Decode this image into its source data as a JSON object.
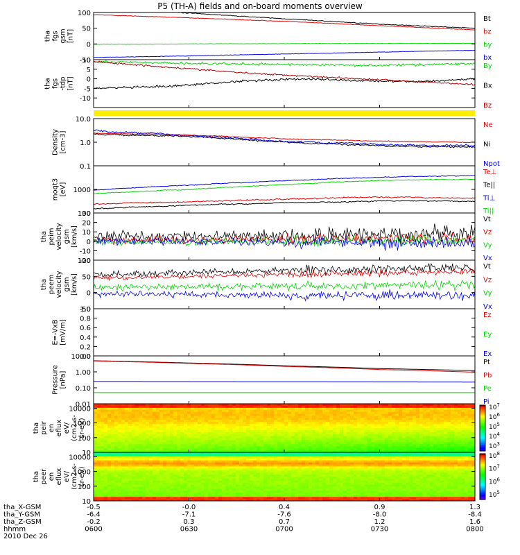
{
  "title": "P5 (TH-A) fields and on-board moments overview",
  "colors": {
    "black": "#000000",
    "red": "#e00000",
    "green": "#00d800",
    "blue": "#0000e0",
    "dark_red": "#b00000",
    "yellow": "#ffee00"
  },
  "footer": {
    "rows": [
      {
        "label": "tha_X-GSM",
        "values": [
          "-0.5",
          "-0.0",
          "0.4",
          "0.9",
          "1.3"
        ]
      },
      {
        "label": "tha_Y-GSM",
        "values": [
          "-6.4",
          "-7.1",
          "-7.6",
          "-8.0",
          "-8.4"
        ]
      },
      {
        "label": "tha_Z-GSM",
        "values": [
          "-0.2",
          "0.3",
          "0.7",
          "1.2",
          "1.6"
        ]
      },
      {
        "label": "hhmm",
        "values": [
          "0600",
          "0630",
          "0700",
          "0730",
          "0800"
        ]
      }
    ],
    "date": "2010 Dec 26"
  },
  "chart_data": [
    {
      "id": "fgs_gsm",
      "type": "line",
      "ylabel_lines": [
        "tha",
        "fgs",
        "gsm",
        "[nT]"
      ],
      "ylim": [
        -50,
        100
      ],
      "yticks": [
        "100",
        "50",
        "0",
        "-50"
      ],
      "x_range": [
        "0600",
        "0800"
      ],
      "series": [
        {
          "name": "Bt",
          "color": "#000000",
          "x": [
            0,
            0.25,
            0.5,
            0.75,
            1
          ],
          "y": [
            118,
            98,
            80,
            63,
            50
          ],
          "noise": 1
        },
        {
          "name": "bz",
          "color": "#e00000",
          "x": [
            0,
            0.25,
            0.5,
            0.75,
            1
          ],
          "y": [
            93,
            83,
            72,
            58,
            45
          ],
          "noise": 0.8
        },
        {
          "name": "by",
          "color": "#00d800",
          "x": [
            0,
            0.5,
            1
          ],
          "y": [
            -1,
            1,
            2
          ],
          "noise": 0.6
        },
        {
          "name": "bx",
          "color": "#0000e0",
          "x": [
            0,
            0.25,
            0.5,
            0.75,
            1
          ],
          "y": [
            -43,
            -38,
            -32,
            -26,
            -20
          ],
          "noise": 0.6
        }
      ]
    },
    {
      "id": "fgs_tdp",
      "type": "line",
      "ylabel_lines": [
        "tha",
        "fgs",
        "-tdp",
        "[nT]"
      ],
      "ylim": [
        -15,
        10
      ],
      "yticks": [
        "10",
        "5",
        "0",
        "-5",
        "-10"
      ],
      "x_range": [
        "0600",
        "0800"
      ],
      "series": [
        {
          "name": "By",
          "color": "#00d800",
          "x": [
            0,
            0.25,
            0.5,
            0.75,
            1
          ],
          "y": [
            9,
            8,
            7.5,
            7,
            8
          ],
          "noise": 0.5
        },
        {
          "name": "Bx",
          "color": "#000000",
          "x": [
            0,
            0.2,
            0.4,
            0.55,
            0.7,
            0.85,
            1
          ],
          "y": [
            -5,
            -4,
            -1,
            0,
            -1,
            -1.5,
            0
          ],
          "noise": 0.5
        },
        {
          "name": "Bz",
          "color": "#b00000",
          "x": [
            0,
            0.2,
            0.4,
            0.6,
            0.8,
            1
          ],
          "y": [
            9,
            6,
            3,
            1,
            -1,
            -3
          ],
          "noise": 0.4
        }
      ]
    },
    {
      "id": "quality_bar",
      "type": "bar",
      "color": "#ffee00"
    },
    {
      "id": "density",
      "type": "line",
      "log": true,
      "ylabel_lines": [
        "Density",
        "[cm-3]"
      ],
      "ylim": [
        0.1,
        10
      ],
      "yticks": [
        "10.0",
        "1.0",
        "0.1"
      ],
      "x_range": [
        "0600",
        "0800"
      ],
      "series": [
        {
          "name": "Ne",
          "color": "#e00000",
          "x": [
            0,
            0.25,
            0.5,
            0.75,
            1
          ],
          "y": [
            2.4,
            2.0,
            1.4,
            1.1,
            1.0
          ],
          "noise": 0.02
        },
        {
          "name": "Ni",
          "color": "#000000",
          "x": [
            0,
            0.25,
            0.5,
            0.75,
            1
          ],
          "y": [
            2.2,
            1.7,
            1.0,
            0.7,
            0.65
          ],
          "noise": 0.04
        },
        {
          "name": "Npot",
          "color": "#0000e0",
          "x": [
            0,
            0.25,
            0.5,
            0.75,
            1
          ],
          "y": [
            3.2,
            1.8,
            1.1,
            0.8,
            0.7
          ],
          "noise": 0.05
        }
      ]
    },
    {
      "id": "temperature",
      "type": "line",
      "log": true,
      "ylabel_lines": [
        "moqt3",
        "[eV]"
      ],
      "ylim": [
        100,
        10000
      ],
      "yticks": [
        "1000",
        "100"
      ],
      "x_range": [
        "0600",
        "0800"
      ],
      "series": [
        {
          "name": "Te⊥",
          "color": "#e00000",
          "x": [
            0,
            0.25,
            0.5,
            0.75,
            1
          ],
          "y": [
            240,
            300,
            380,
            480,
            420
          ],
          "noise": 0.03
        },
        {
          "name": "Te||",
          "color": "#000000",
          "x": [
            0,
            0.25,
            0.5,
            0.75,
            1
          ],
          "y": [
            150,
            210,
            270,
            330,
            310
          ],
          "noise": 0.03
        },
        {
          "name": "Ti⊥",
          "color": "#0000e0",
          "x": [
            0,
            0.25,
            0.5,
            0.75,
            1
          ],
          "y": [
            950,
            1500,
            2300,
            3300,
            3900
          ],
          "noise": 0.02
        },
        {
          "name": "Ti||",
          "color": "#00d800",
          "x": [
            0,
            0.25,
            0.5,
            0.75,
            1
          ],
          "y": [
            650,
            1000,
            1600,
            2400,
            2700
          ],
          "noise": 0.02
        }
      ]
    },
    {
      "id": "peim_velocity",
      "type": "line",
      "ylabel_lines": [
        "tha",
        "peim",
        "velocity",
        "gsm",
        "[km/s]"
      ],
      "ylim": [
        -20,
        30
      ],
      "yticks": [
        "30",
        "20",
        "10",
        "0",
        "-10",
        "-20"
      ],
      "x_range": [
        "0600",
        "0800"
      ],
      "series": [
        {
          "name": "Vt",
          "color": "#000000",
          "x": [
            0,
            0.5,
            1
          ],
          "y": [
            5,
            6,
            8
          ],
          "noise": 5
        },
        {
          "name": "Vz",
          "color": "#e00000",
          "x": [
            0,
            0.5,
            1
          ],
          "y": [
            1,
            2,
            3
          ],
          "noise": 3.5
        },
        {
          "name": "Vy",
          "color": "#00d800",
          "x": [
            0,
            0.5,
            1
          ],
          "y": [
            -1,
            0,
            1
          ],
          "noise": 3
        },
        {
          "name": "Vx",
          "color": "#0000e0",
          "x": [
            0,
            0.5,
            1
          ],
          "y": [
            0,
            -1,
            -2
          ],
          "noise": 3.5
        }
      ]
    },
    {
      "id": "peem_velocity",
      "type": "line",
      "ylabel_lines": [
        "tha",
        "peem",
        "velocity",
        "gsm",
        "[km/s]"
      ],
      "ylim": [
        -50,
        100
      ],
      "yticks": [
        "100",
        "50",
        "0",
        "-50"
      ],
      "x_range": [
        "0600",
        "0800"
      ],
      "series": [
        {
          "name": "Vt",
          "color": "#000000",
          "x": [
            0,
            0.5,
            1
          ],
          "y": [
            55,
            68,
            78
          ],
          "noise": 8
        },
        {
          "name": "Vz",
          "color": "#e00000",
          "x": [
            0,
            0.5,
            1
          ],
          "y": [
            45,
            55,
            65
          ],
          "noise": 6
        },
        {
          "name": "Vy",
          "color": "#00d800",
          "x": [
            0,
            0.5,
            1
          ],
          "y": [
            15,
            20,
            25
          ],
          "noise": 8
        },
        {
          "name": "Vx",
          "color": "#0000e0",
          "x": [
            0,
            0.5,
            1
          ],
          "y": [
            -5,
            -8,
            -10
          ],
          "noise": 8
        }
      ]
    },
    {
      "id": "e_field",
      "type": "line",
      "ylabel_lines": [
        "E=-VxB",
        "[mV/m]"
      ],
      "ylim": [
        0,
        1
      ],
      "yticks": [
        "1.0",
        "0.8",
        "0.6",
        "0.4",
        "0.2",
        "0.0"
      ],
      "x_range": [
        "0600",
        "0800"
      ],
      "series": [
        {
          "name": "Ez",
          "color": "#e00000"
        },
        {
          "name": "Ey",
          "color": "#00d800"
        },
        {
          "name": "Ex",
          "color": "#0000e0"
        }
      ]
    },
    {
      "id": "pressure",
      "type": "line",
      "log": true,
      "ylabel_lines": [
        "Pressure",
        "[nPa]"
      ],
      "ylim": [
        0.01,
        10
      ],
      "yticks": [
        "10.00",
        "1.00",
        "0.10",
        "0.01"
      ],
      "x_range": [
        "0600",
        "0800"
      ],
      "series": [
        {
          "name": "Pt",
          "color": "#000000",
          "x": [
            0,
            0.25,
            0.5,
            0.75,
            1
          ],
          "y": [
            5.0,
            3.6,
            2.4,
            1.6,
            1.2
          ],
          "noise": 0
        },
        {
          "name": "Pb",
          "color": "#e00000",
          "x": [
            0,
            0.25,
            0.5,
            0.75,
            1
          ],
          "y": [
            4.8,
            3.4,
            2.2,
            1.4,
            0.95
          ],
          "noise": 0
        },
        {
          "name": "Pe",
          "color": "#00d800",
          "x": [
            0,
            0.5,
            1
          ],
          "y": [
            0.05,
            0.05,
            0.05
          ],
          "noise": 0
        },
        {
          "name": "Pi",
          "color": "#0000e0",
          "x": [
            0,
            0.5,
            1
          ],
          "y": [
            0.25,
            0.24,
            0.23
          ],
          "noise": 0
        }
      ]
    },
    {
      "id": "peir_spectrogram",
      "type": "heatmap",
      "ylabel_lines": [
        "tha",
        "peir",
        "en",
        "eflux",
        "eV/",
        "(cm2-s-",
        "sr-eV)"
      ],
      "ylim": [
        10,
        20000
      ],
      "yticks": [
        "10000",
        "1000",
        "100",
        "10"
      ],
      "colorbar_ticks": [
        "10^7",
        "10^6",
        "10^5",
        "10^4",
        "10^3"
      ]
    },
    {
      "id": "peer_spectrogram",
      "type": "heatmap",
      "ylabel_lines": [
        "tha",
        "peer",
        "en",
        "eflux",
        "eV/",
        "(cm2-s-",
        "sr-eV)"
      ],
      "ylim": [
        10,
        20000
      ],
      "yticks": [
        "10000",
        "1000",
        "100",
        "10"
      ],
      "colorbar_ticks": [
        "10^8",
        "10^7",
        "10^6",
        "10^5"
      ]
    }
  ]
}
